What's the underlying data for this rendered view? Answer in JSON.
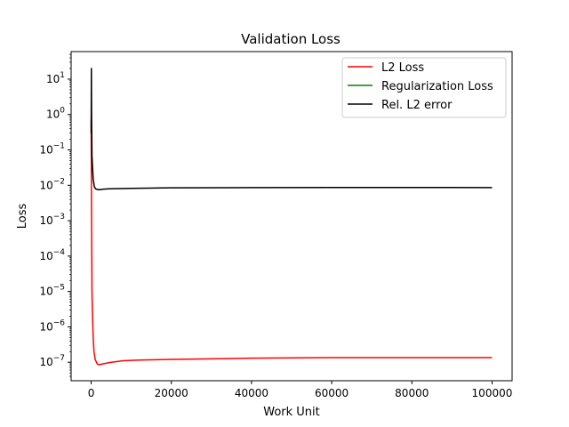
{
  "chart_data": {
    "type": "line",
    "title": "Validation Loss",
    "xlabel": "Work Unit",
    "ylabel": "Loss",
    "xlim": [
      -5000,
      105000
    ],
    "ylim": [
      3e-08,
      60
    ],
    "yscale": "log",
    "grid": false,
    "legend_position": "top-right",
    "x_ticks": [
      0,
      20000,
      40000,
      60000,
      80000,
      100000
    ],
    "x_tick_labels": [
      "0",
      "20000",
      "40000",
      "60000",
      "80000",
      "100000"
    ],
    "y_ticks": [
      1e-07,
      1e-06,
      1e-05,
      0.0001,
      0.001,
      0.01,
      0.1,
      1,
      10
    ],
    "y_tick_labels": [
      {
        "base": "10",
        "exp": "−7"
      },
      {
        "base": "10",
        "exp": "−6"
      },
      {
        "base": "10",
        "exp": "−5"
      },
      {
        "base": "10",
        "exp": "−4"
      },
      {
        "base": "10",
        "exp": "−3"
      },
      {
        "base": "10",
        "exp": "−2"
      },
      {
        "base": "10",
        "exp": "−1"
      },
      {
        "base": "10",
        "exp": "0"
      },
      {
        "base": "10",
        "exp": "1"
      }
    ],
    "series": [
      {
        "name": "L2 Loss",
        "color": "#ff0000",
        "x": [
          0,
          100,
          200,
          300,
          500,
          700,
          1000,
          1500,
          2000,
          3000,
          5000,
          8000,
          12000,
          20000,
          30000,
          40000,
          60000,
          80000,
          100000
        ],
        "y": [
          0.7,
          0.001,
          1e-05,
          3e-06,
          5e-07,
          2e-07,
          1.2e-07,
          9e-08,
          8.5e-08,
          9e-08,
          1e-07,
          1.1e-07,
          1.15e-07,
          1.2e-07,
          1.25e-07,
          1.3e-07,
          1.35e-07,
          1.35e-07,
          1.35e-07
        ]
      },
      {
        "name": "Regularization Loss",
        "color": "#008000",
        "x": [],
        "y": []
      },
      {
        "name": "Rel. L2 error",
        "color": "#000000",
        "x": [
          0,
          50,
          100,
          200,
          300,
          500,
          800,
          1200,
          2000,
          3000,
          5000,
          10000,
          20000,
          40000,
          60000,
          80000,
          100000
        ],
        "y": [
          0.3,
          20,
          1.0,
          0.07,
          0.04,
          0.015,
          0.009,
          0.0078,
          0.0075,
          0.0078,
          0.008,
          0.0082,
          0.0085,
          0.0086,
          0.0087,
          0.0087,
          0.0086
        ]
      }
    ]
  }
}
